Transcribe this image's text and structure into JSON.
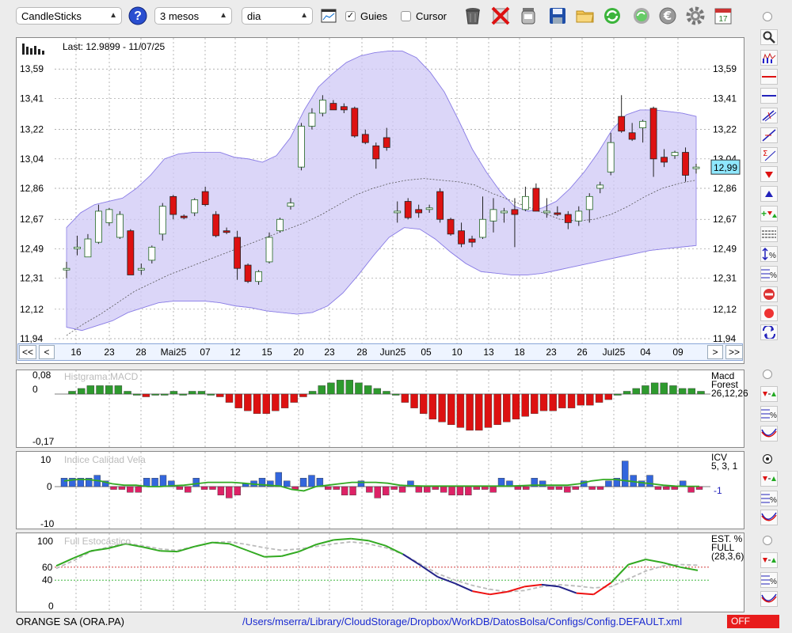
{
  "toolbar": {
    "chart_type": "CandleSticks",
    "period": "3 mesos",
    "interval": "dia",
    "guides_label": "Guies",
    "guides_checked": true,
    "cursor_label": "Cursor",
    "cursor_checked": false,
    "calendar_day": "17",
    "icons": [
      "help-icon",
      "indicator-window-icon",
      "trash-icon",
      "delete-icon",
      "jar-icon",
      "save-icon",
      "folder-icon",
      "refresh-icon",
      "refresh-alt-icon",
      "euro-icon",
      "gear-icon",
      "calendar-icon"
    ]
  },
  "main_panel": {
    "last_label": "Last: 12.9899 - 11/07/25",
    "current_price": "12,99",
    "y_ticks": [
      "13,59",
      "13,41",
      "13,22",
      "13,04",
      "12,86",
      "12,67",
      "12,49",
      "12,31",
      "12,12",
      "11,94"
    ],
    "x_ticks": [
      "16",
      "23",
      "28",
      "Mai25",
      "07",
      "12",
      "15",
      "20",
      "23",
      "28",
      "Jun25",
      "05",
      "10",
      "13",
      "18",
      "23",
      "26",
      "Jul25",
      "04",
      "09"
    ],
    "nav": {
      "first": "<<",
      "prev": "<",
      "next": ">",
      "last": ">>"
    }
  },
  "macd_panel": {
    "title": "Histgrama MACD",
    "label1": "Macd",
    "label2": "Forest",
    "params": "26,12,26",
    "y_ticks": [
      "0,08",
      "0",
      "-0,17"
    ]
  },
  "icv_panel": {
    "title": "Indice Calidad Vela",
    "label1": "ICV",
    "params": "5, 3, 1",
    "value": "-1",
    "y_ticks": [
      "10",
      "0",
      "-10"
    ]
  },
  "stoch_panel": {
    "title": "Full Estocástico",
    "label1": "EST. %",
    "label2": "FULL",
    "params": "(28,3,6)",
    "y_ticks": [
      "100",
      "60",
      "40",
      "0"
    ]
  },
  "status": {
    "symbol": "ORANGE SA (ORA.PA)",
    "path": "/Users/mserra/Library/CloudStorage/Dropbox/WorkDB/DatosBolsa/Configs/Config.DEFAULT.xml",
    "state": "OFF"
  },
  "colors": {
    "up": "#2e9a2e",
    "down": "#dd1111",
    "band": "#cfc8f5",
    "accent": "#8fe8ff",
    "stoch_green": "#33aa22",
    "stoch_red": "#ee1111",
    "stoch_navy": "#222288",
    "icv_up": "#3366dd",
    "icv_down": "#dd2266"
  },
  "chart_data": [
    {
      "type": "candlestick",
      "title": "Last: 12.9899 - 11/07/25",
      "ylim": [
        11.94,
        13.78
      ],
      "x_tick_labels": [
        "16",
        "23",
        "28",
        "Mai25",
        "07",
        "12",
        "15",
        "20",
        "23",
        "28",
        "Jun25",
        "05",
        "10",
        "13",
        "18",
        "23",
        "26",
        "Jul25",
        "04",
        "09"
      ],
      "series": [
        {
          "name": "candles",
          "values": [
            {
              "o": 12.37,
              "h": 12.41,
              "l": 12.31,
              "c": 12.37
            },
            {
              "o": 12.49,
              "h": 12.57,
              "l": 12.45,
              "c": 12.5
            },
            {
              "o": 12.44,
              "h": 12.58,
              "l": 12.44,
              "c": 12.55
            },
            {
              "o": 12.53,
              "h": 12.76,
              "l": 12.52,
              "c": 12.72
            },
            {
              "o": 12.65,
              "h": 12.74,
              "l": 12.63,
              "c": 12.73
            },
            {
              "o": 12.56,
              "h": 12.72,
              "l": 12.55,
              "c": 12.7
            },
            {
              "o": 12.6,
              "h": 12.61,
              "l": 12.33,
              "c": 12.33
            },
            {
              "o": 12.36,
              "h": 12.4,
              "l": 12.33,
              "c": 12.37
            },
            {
              "o": 12.42,
              "h": 12.51,
              "l": 12.4,
              "c": 12.5
            },
            {
              "o": 12.58,
              "h": 12.77,
              "l": 12.54,
              "c": 12.75
            },
            {
              "o": 12.81,
              "h": 12.82,
              "l": 12.67,
              "c": 12.7
            },
            {
              "o": 12.69,
              "h": 12.7,
              "l": 12.67,
              "c": 12.68
            },
            {
              "o": 12.71,
              "h": 12.8,
              "l": 12.69,
              "c": 12.79
            },
            {
              "o": 12.84,
              "h": 12.87,
              "l": 12.75,
              "c": 12.76
            },
            {
              "o": 12.7,
              "h": 12.72,
              "l": 12.56,
              "c": 12.57
            },
            {
              "o": 12.6,
              "h": 12.62,
              "l": 12.58,
              "c": 12.59
            },
            {
              "o": 12.56,
              "h": 12.6,
              "l": 12.3,
              "c": 12.37
            },
            {
              "o": 12.39,
              "h": 12.4,
              "l": 12.28,
              "c": 12.29
            },
            {
              "o": 12.29,
              "h": 12.36,
              "l": 12.27,
              "c": 12.35
            },
            {
              "o": 12.41,
              "h": 12.59,
              "l": 12.4,
              "c": 12.56
            },
            {
              "o": 12.6,
              "h": 12.68,
              "l": 12.59,
              "c": 12.67
            },
            {
              "o": 12.75,
              "h": 12.8,
              "l": 12.73,
              "c": 12.77
            },
            {
              "o": 12.99,
              "h": 13.26,
              "l": 12.97,
              "c": 13.24
            },
            {
              "o": 13.24,
              "h": 13.35,
              "l": 13.22,
              "c": 13.32
            },
            {
              "o": 13.32,
              "h": 13.43,
              "l": 13.3,
              "c": 13.4
            },
            {
              "o": 13.38,
              "h": 13.4,
              "l": 13.34,
              "c": 13.34
            },
            {
              "o": 13.36,
              "h": 13.38,
              "l": 13.32,
              "c": 13.34
            },
            {
              "o": 13.35,
              "h": 13.36,
              "l": 13.17,
              "c": 13.18
            },
            {
              "o": 13.19,
              "h": 13.22,
              "l": 13.13,
              "c": 13.14
            },
            {
              "o": 13.12,
              "h": 13.14,
              "l": 12.98,
              "c": 13.04
            },
            {
              "o": 13.17,
              "h": 13.23,
              "l": 13.09,
              "c": 13.11
            },
            {
              "o": 12.72,
              "h": 12.78,
              "l": 12.65,
              "c": 12.72
            },
            {
              "o": 12.78,
              "h": 12.8,
              "l": 12.67,
              "c": 12.68
            },
            {
              "o": 12.73,
              "h": 12.76,
              "l": 12.68,
              "c": 12.71
            },
            {
              "o": 12.74,
              "h": 12.76,
              "l": 12.71,
              "c": 12.74
            },
            {
              "o": 12.84,
              "h": 12.86,
              "l": 12.65,
              "c": 12.67
            },
            {
              "o": 12.67,
              "h": 12.68,
              "l": 12.57,
              "c": 12.58
            },
            {
              "o": 12.6,
              "h": 12.65,
              "l": 12.5,
              "c": 12.52
            },
            {
              "o": 12.55,
              "h": 12.57,
              "l": 12.5,
              "c": 12.53
            },
            {
              "o": 12.56,
              "h": 12.81,
              "l": 12.55,
              "c": 12.67
            },
            {
              "o": 12.66,
              "h": 12.8,
              "l": 12.59,
              "c": 12.73
            },
            {
              "o": 12.71,
              "h": 12.74,
              "l": 12.65,
              "c": 12.72
            },
            {
              "o": 12.73,
              "h": 12.8,
              "l": 12.5,
              "c": 12.7
            },
            {
              "o": 12.73,
              "h": 12.87,
              "l": 12.72,
              "c": 12.81
            },
            {
              "o": 12.86,
              "h": 12.89,
              "l": 12.74,
              "c": 12.72
            },
            {
              "o": 12.72,
              "h": 12.8,
              "l": 12.68,
              "c": 12.72
            },
            {
              "o": 12.71,
              "h": 12.75,
              "l": 12.69,
              "c": 12.7
            },
            {
              "o": 12.7,
              "h": 12.72,
              "l": 12.61,
              "c": 12.65
            },
            {
              "o": 12.66,
              "h": 12.75,
              "l": 12.63,
              "c": 12.72
            },
            {
              "o": 12.73,
              "h": 12.83,
              "l": 12.65,
              "c": 12.81
            },
            {
              "o": 12.86,
              "h": 12.9,
              "l": 12.83,
              "c": 12.88
            },
            {
              "o": 12.96,
              "h": 13.2,
              "l": 12.94,
              "c": 13.14
            },
            {
              "o": 13.3,
              "h": 13.43,
              "l": 13.2,
              "c": 13.21
            },
            {
              "o": 13.2,
              "h": 13.26,
              "l": 13.15,
              "c": 13.16
            },
            {
              "o": 13.23,
              "h": 13.28,
              "l": 13.14,
              "c": 13.27
            },
            {
              "o": 13.35,
              "h": 13.36,
              "l": 12.93,
              "c": 13.04
            },
            {
              "o": 13.05,
              "h": 13.1,
              "l": 12.99,
              "c": 13.02
            },
            {
              "o": 13.06,
              "h": 13.09,
              "l": 13.04,
              "c": 13.08
            },
            {
              "o": 13.08,
              "h": 13.11,
              "l": 12.9,
              "c": 12.94
            },
            {
              "o": 12.99,
              "h": 13.01,
              "l": 12.95,
              "c": 12.99
            }
          ]
        },
        {
          "name": "bollinger_upper",
          "values": [
            12.62,
            12.71,
            12.76,
            12.78,
            12.8,
            12.86,
            12.94,
            13.04,
            13.07,
            13.08,
            13.08,
            13.08,
            13.05,
            13.04,
            13.02,
            13.06,
            13.17,
            13.34,
            13.48,
            13.56,
            13.63,
            13.67,
            13.69,
            13.7,
            13.7,
            13.66,
            13.57,
            13.45,
            13.28,
            13.1,
            12.96,
            12.84,
            12.75,
            12.72,
            12.74,
            12.78,
            12.86,
            12.96,
            13.08,
            13.22,
            13.31,
            13.34,
            13.34,
            13.33,
            13.32,
            13.3
          ]
        },
        {
          "name": "bollinger_lower",
          "values": [
            12.01,
            11.99,
            12.02,
            12.05,
            12.1,
            12.13,
            12.16,
            12.17,
            12.17,
            12.17,
            12.16,
            12.14,
            12.13,
            12.11,
            12.1,
            12.09,
            12.1,
            12.14,
            12.22,
            12.33,
            12.45,
            12.56,
            12.62,
            12.61,
            12.55,
            12.47,
            12.4,
            12.35,
            12.34,
            12.33,
            12.33,
            12.34,
            12.36,
            12.38,
            12.4,
            12.42,
            12.44,
            12.46,
            12.48,
            12.49,
            12.5,
            12.51
          ]
        },
        {
          "name": "moving_average",
          "values": [
            11.96,
            12.03,
            12.09,
            12.16,
            12.23,
            12.28,
            12.33,
            12.37,
            12.41,
            12.45,
            12.49,
            12.53,
            12.57,
            12.61,
            12.65,
            12.7,
            12.76,
            12.82,
            12.86,
            12.89,
            12.91,
            12.92,
            12.91,
            12.9,
            12.88,
            12.83,
            12.79,
            12.75,
            12.71,
            12.67,
            12.66,
            12.67,
            12.7,
            12.75,
            12.81,
            12.86,
            12.89,
            12.91
          ]
        }
      ]
    },
    {
      "type": "bar",
      "title": "Histgrama MACD",
      "ylim": [
        -0.17,
        0.08
      ],
      "series": [
        {
          "name": "Forest",
          "values": [
            0.01,
            0.02,
            0.03,
            0.03,
            0.03,
            0.03,
            0.01,
            0.0,
            -0.01,
            0.0,
            0.0,
            0.01,
            0.0,
            0.01,
            0.01,
            0.0,
            -0.01,
            -0.03,
            -0.05,
            -0.06,
            -0.07,
            -0.07,
            -0.06,
            -0.05,
            -0.03,
            -0.01,
            0.01,
            0.03,
            0.04,
            0.05,
            0.05,
            0.04,
            0.03,
            0.02,
            0.01,
            0.0,
            -0.03,
            -0.05,
            -0.07,
            -0.09,
            -0.1,
            -0.11,
            -0.12,
            -0.13,
            -0.13,
            -0.12,
            -0.11,
            -0.1,
            -0.09,
            -0.08,
            -0.07,
            -0.06,
            -0.06,
            -0.05,
            -0.05,
            -0.04,
            -0.04,
            -0.03,
            -0.02,
            0.0,
            0.01,
            0.02,
            0.03,
            0.04,
            0.04,
            0.03,
            0.02,
            0.02,
            0.01
          ]
        }
      ]
    },
    {
      "type": "bar",
      "title": "Indice Calidad Vela",
      "ylim": [
        -10,
        10
      ],
      "series": [
        {
          "name": "ICV",
          "values": [
            3,
            3,
            3,
            3,
            4,
            2,
            -1,
            -1,
            -2,
            -2,
            3,
            3,
            4,
            2,
            -1,
            -2,
            3,
            -1,
            -1,
            -3,
            -4,
            -3,
            1,
            2,
            3,
            2,
            5,
            2,
            -1,
            3,
            4,
            3,
            -1,
            -1,
            -3,
            -3,
            2,
            -2,
            -4,
            -3,
            -1,
            -2,
            2,
            -2,
            -2,
            -1,
            -2,
            -3,
            -3,
            -3,
            -1,
            -1,
            -2,
            3,
            2,
            -1,
            -1,
            3,
            2,
            -1,
            -1,
            -2,
            -1,
            2,
            -1,
            -1,
            2,
            3,
            9,
            4,
            2,
            4,
            -1,
            -1,
            -1,
            2,
            -2,
            -1
          ]
        },
        {
          "name": "signal",
          "values": [
            2,
            2.5,
            2.5,
            2,
            1,
            0.5,
            0.5,
            0,
            0,
            0.3,
            0.5,
            1,
            1.5,
            1.5,
            1.5,
            1.2,
            0.8,
            0.5,
            0.2,
            -1,
            -1.5,
            0,
            0.5,
            1,
            1.5,
            1.5,
            1.5,
            1.2,
            0.5,
            0.3,
            0.2,
            0.2,
            0.2,
            0.2,
            0.2,
            0.2,
            0.2,
            0.2,
            0.3,
            0.5,
            0.5,
            0.5,
            0.5,
            1,
            2,
            2.5,
            2.5,
            2,
            1.5,
            1,
            0.5,
            0.2,
            0.1,
            0.1
          ]
        }
      ]
    },
    {
      "type": "line",
      "title": "Full Estocástico",
      "ylim": [
        0,
        100
      ],
      "series": [
        {
          "name": "%K",
          "values": [
            62,
            74,
            85,
            89,
            96,
            91,
            85,
            84,
            92,
            98,
            96,
            86,
            76,
            77,
            84,
            95,
            102,
            104,
            101,
            93,
            80,
            63,
            45,
            35,
            23,
            18,
            22,
            30,
            33,
            30,
            20,
            18,
            36,
            64,
            72,
            67,
            60,
            55
          ]
        },
        {
          "name": "%D",
          "values": [
            58,
            70,
            84,
            91,
            97,
            93,
            88,
            86,
            92,
            98,
            99,
            95,
            90,
            86,
            88,
            92,
            96,
            99,
            96,
            90,
            80,
            65,
            50,
            40,
            32,
            26,
            22,
            24,
            30,
            33,
            31,
            28,
            30,
            42,
            54,
            62,
            64,
            63
          ]
        }
      ]
    }
  ]
}
